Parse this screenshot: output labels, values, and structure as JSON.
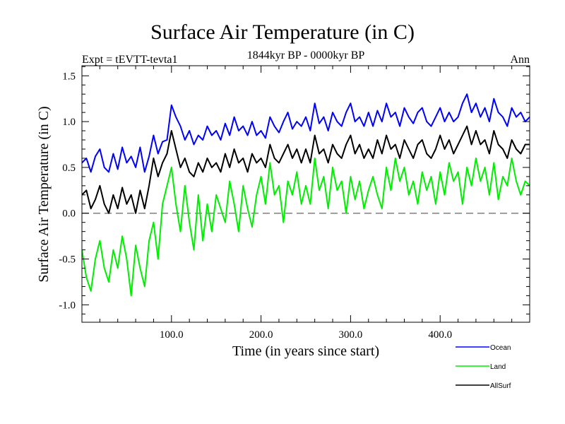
{
  "chart_data": {
    "type": "line",
    "title": "Surface Air Temperature (in C)",
    "subtitle": "1844kyr BP - 0000kyr BP",
    "left_annotation": "Expt = tEVTT-tevta1",
    "right_annotation": "Ann",
    "xlabel": "Time (in years since start)",
    "ylabel": "Surface Air Temperature (in C)",
    "xlim": [
      0,
      500
    ],
    "ylim": [
      -1.19,
      1.61
    ],
    "x_ticks": [
      100,
      200,
      300,
      400
    ],
    "x_tick_labels": [
      "100.0",
      "200.0",
      "300.0",
      "400.0"
    ],
    "x_minor_step": 20,
    "y_ticks": [
      -1.0,
      -0.5,
      0.0,
      0.5,
      1.0,
      1.5
    ],
    "y_tick_labels": [
      "-1.0",
      "-0.5",
      "0.0",
      "0.5",
      "1.0",
      "1.5"
    ],
    "y_minor_step": 0.1,
    "reference_line": {
      "y": 0.0,
      "style": "dashed",
      "color": "#808080"
    },
    "grid": false,
    "legend_position": "bottom-right-outside",
    "x": [
      0,
      5,
      10,
      15,
      20,
      25,
      30,
      35,
      40,
      45,
      50,
      55,
      60,
      65,
      70,
      75,
      80,
      85,
      90,
      95,
      100,
      105,
      110,
      115,
      120,
      125,
      130,
      135,
      140,
      145,
      150,
      155,
      160,
      165,
      170,
      175,
      180,
      185,
      190,
      195,
      200,
      205,
      210,
      215,
      220,
      225,
      230,
      235,
      240,
      245,
      250,
      255,
      260,
      265,
      270,
      275,
      280,
      285,
      290,
      295,
      300,
      305,
      310,
      315,
      320,
      325,
      330,
      335,
      340,
      345,
      350,
      355,
      360,
      365,
      370,
      375,
      380,
      385,
      390,
      395,
      400,
      405,
      410,
      415,
      420,
      425,
      430,
      435,
      440,
      445,
      450,
      455,
      460,
      465,
      470,
      475,
      480,
      485,
      490,
      495,
      500
    ],
    "series": [
      {
        "name": "Ocean",
        "color": "#0000ff",
        "values": [
          0.55,
          0.6,
          0.45,
          0.62,
          0.7,
          0.5,
          0.45,
          0.65,
          0.48,
          0.72,
          0.55,
          0.62,
          0.5,
          0.72,
          0.45,
          0.62,
          0.85,
          0.65,
          0.78,
          0.8,
          1.18,
          1.05,
          0.95,
          0.8,
          0.9,
          0.75,
          0.85,
          0.8,
          0.95,
          0.85,
          0.9,
          0.8,
          0.98,
          0.85,
          1.05,
          0.9,
          0.95,
          0.85,
          1.0,
          0.85,
          0.9,
          0.82,
          1.05,
          0.95,
          0.88,
          1.0,
          1.1,
          0.92,
          1.0,
          0.95,
          1.05,
          0.9,
          1.2,
          0.98,
          1.05,
          0.9,
          1.1,
          1.0,
          0.95,
          1.1,
          1.2,
          1.0,
          1.05,
          0.95,
          1.1,
          0.95,
          1.12,
          1.0,
          1.2,
          1.05,
          1.1,
          0.95,
          1.15,
          1.05,
          0.98,
          1.1,
          1.15,
          1.0,
          0.95,
          1.05,
          1.15,
          1.0,
          1.1,
          1.0,
          1.05,
          1.2,
          1.3,
          1.1,
          1.2,
          1.05,
          1.15,
          1.0,
          1.25,
          1.1,
          1.05,
          0.95,
          1.15,
          1.05,
          1.1,
          1.0,
          1.05
        ]
      },
      {
        "name": "Land",
        "color": "#00ee00",
        "values": [
          -0.4,
          -0.7,
          -0.85,
          -0.5,
          -0.3,
          -0.6,
          -0.75,
          -0.4,
          -0.6,
          -0.25,
          -0.5,
          -0.9,
          -0.35,
          -0.6,
          -0.8,
          -0.3,
          -0.1,
          -0.5,
          0.1,
          0.3,
          0.5,
          0.1,
          -0.2,
          0.3,
          -0.1,
          -0.4,
          0.2,
          -0.3,
          0.1,
          -0.2,
          0.2,
          0.05,
          -0.1,
          0.35,
          0.1,
          -0.2,
          0.3,
          0.05,
          -0.15,
          0.2,
          0.4,
          0.1,
          0.55,
          0.2,
          0.3,
          -0.1,
          0.35,
          0.2,
          0.45,
          0.1,
          0.3,
          0.1,
          0.6,
          0.25,
          0.4,
          0.05,
          0.5,
          0.25,
          0.35,
          0.0,
          0.4,
          0.15,
          0.35,
          0.05,
          0.25,
          0.4,
          0.2,
          0.05,
          0.5,
          0.25,
          0.6,
          0.35,
          0.5,
          0.2,
          0.35,
          0.1,
          0.45,
          0.25,
          0.4,
          0.1,
          0.45,
          0.2,
          0.55,
          0.35,
          0.45,
          0.1,
          0.5,
          0.3,
          0.6,
          0.35,
          0.5,
          0.2,
          0.55,
          0.15,
          0.4,
          0.3,
          0.6,
          0.35,
          0.2,
          0.35,
          0.3
        ]
      },
      {
        "name": "AllSurf",
        "color": "#000000",
        "values": [
          0.2,
          0.25,
          0.05,
          0.15,
          0.3,
          0.1,
          0.0,
          0.2,
          0.05,
          0.28,
          0.1,
          0.2,
          0.0,
          0.25,
          0.05,
          0.3,
          0.6,
          0.4,
          0.55,
          0.65,
          0.9,
          0.7,
          0.5,
          0.6,
          0.45,
          0.4,
          0.55,
          0.45,
          0.6,
          0.5,
          0.55,
          0.45,
          0.65,
          0.5,
          0.7,
          0.55,
          0.6,
          0.45,
          0.65,
          0.55,
          0.6,
          0.5,
          0.75,
          0.6,
          0.55,
          0.65,
          0.75,
          0.6,
          0.7,
          0.55,
          0.7,
          0.55,
          0.85,
          0.65,
          0.7,
          0.55,
          0.75,
          0.65,
          0.6,
          0.75,
          0.85,
          0.65,
          0.75,
          0.6,
          0.7,
          0.6,
          0.8,
          0.65,
          0.85,
          0.7,
          0.75,
          0.6,
          0.8,
          0.7,
          0.6,
          0.75,
          0.8,
          0.65,
          0.6,
          0.7,
          0.85,
          0.7,
          0.8,
          0.65,
          0.75,
          0.85,
          0.95,
          0.75,
          0.9,
          0.75,
          0.8,
          0.65,
          0.9,
          0.75,
          0.7,
          0.6,
          0.8,
          0.7,
          0.65,
          0.75,
          0.75
        ]
      }
    ]
  }
}
